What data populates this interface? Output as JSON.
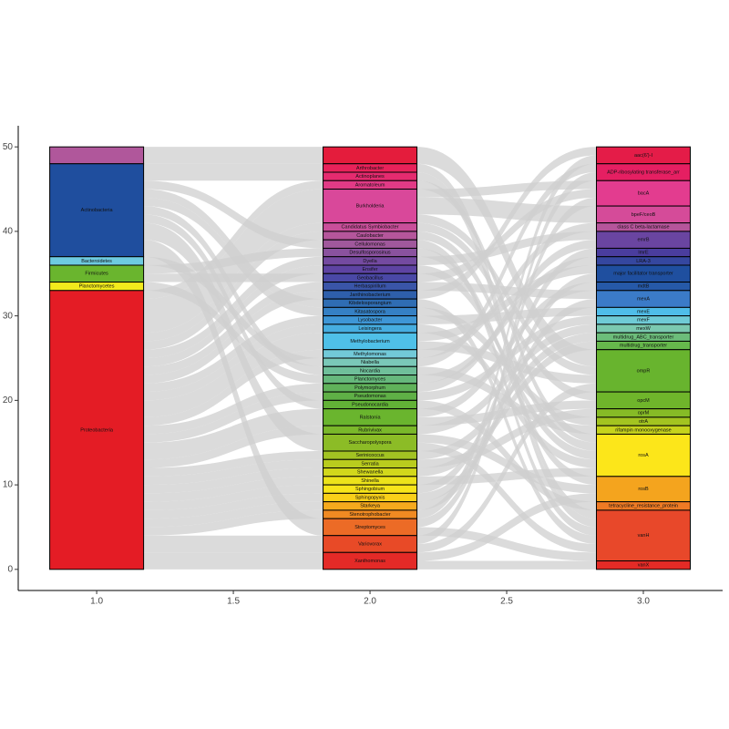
{
  "chart_data": {
    "type": "alluvial",
    "xlim": [
      0.713,
      3.29
    ],
    "ylim": [
      -2.5,
      52.5
    ],
    "xticks": [
      {
        "value": 1,
        "label": "1.0"
      },
      {
        "value": 1.5,
        "label": "1.5"
      },
      {
        "value": 2,
        "label": "2.0"
      },
      {
        "value": 2.5,
        "label": "2.5"
      },
      {
        "value": 3,
        "label": "3.0"
      }
    ],
    "yticks": [
      0,
      10,
      20,
      30,
      40,
      50
    ],
    "link_color": "#cfcfcf",
    "axes": [
      {
        "x": 1,
        "strata": [
          {
            "label": null,
            "value": 2,
            "color": "#b0579b"
          },
          {
            "label": "Actinobacteria",
            "value": 11,
            "color": "#1f4e9e"
          },
          {
            "label": "Bacteroidetes",
            "value": 1,
            "color": "#6ecbe0"
          },
          {
            "label": "Firmicutes",
            "value": 2,
            "color": "#6ab52e"
          },
          {
            "label": "Planctomycetes",
            "value": 1,
            "color": "#f2ea1c"
          },
          {
            "label": "Proteobacteria",
            "value": 33,
            "color": "#e41c25"
          }
        ]
      },
      {
        "x": 2,
        "strata": [
          {
            "label": null,
            "value": 2,
            "color": "#e41c3c"
          },
          {
            "label": "Arthrobacter",
            "value": 1,
            "color": "#e8225a"
          },
          {
            "label": "Actinoplanes",
            "value": 1,
            "color": "#e52b6f"
          },
          {
            "label": "Aromatoleum",
            "value": 1,
            "color": "#e23a86"
          },
          {
            "label": "Burkholderia",
            "value": 4,
            "color": "#d9489a"
          },
          {
            "label": "Candidatus Symbiobacter",
            "value": 1,
            "color": "#c94f9a"
          },
          {
            "label": "Caulobacter",
            "value": 1,
            "color": "#b5569b"
          },
          {
            "label": "Cellulomonas",
            "value": 1,
            "color": "#a0589c"
          },
          {
            "label": "Desulfosporosinus",
            "value": 1,
            "color": "#8a529e"
          },
          {
            "label": "Dyella",
            "value": 1,
            "color": "#744aa0"
          },
          {
            "label": "Ensifer",
            "value": 1,
            "color": "#5e43a2"
          },
          {
            "label": "Geobacillus",
            "value": 1,
            "color": "#4a48a6"
          },
          {
            "label": "Herbaspirillum",
            "value": 1,
            "color": "#3a55a8"
          },
          {
            "label": "Janthinobacterium",
            "value": 1,
            "color": "#2e5fab"
          },
          {
            "label": "Kibdelosporangium",
            "value": 1,
            "color": "#2f6db3"
          },
          {
            "label": "Kitasatospora",
            "value": 1,
            "color": "#3580c4"
          },
          {
            "label": "Lysobacter",
            "value": 1,
            "color": "#3e96d6"
          },
          {
            "label": "Leisingera",
            "value": 1,
            "color": "#46ade0"
          },
          {
            "label": "Methylobacterium",
            "value": 2,
            "color": "#4fc0e8"
          },
          {
            "label": "Methylomonas",
            "value": 1,
            "color": "#72c9d8"
          },
          {
            "label": "Niabella",
            "value": 1,
            "color": "#7ac8b8"
          },
          {
            "label": "Nocardia",
            "value": 1,
            "color": "#6fbf9a"
          },
          {
            "label": "Planctomyces",
            "value": 1,
            "color": "#66b87c"
          },
          {
            "label": "Polymorphum",
            "value": 1,
            "color": "#60b25a"
          },
          {
            "label": "Pseudomonas",
            "value": 1,
            "color": "#5fb046"
          },
          {
            "label": "Pseudonocardia",
            "value": 1,
            "color": "#62b236"
          },
          {
            "label": "Ralstonia",
            "value": 2,
            "color": "#6ab52e"
          },
          {
            "label": "Rubrivivax",
            "value": 1,
            "color": "#7ab82a"
          },
          {
            "label": "Saccharopolyspora",
            "value": 2,
            "color": "#8cbc26"
          },
          {
            "label": "Serinicoccus",
            "value": 1,
            "color": "#a2c322"
          },
          {
            "label": "Serratia",
            "value": 1,
            "color": "#b9cc1e"
          },
          {
            "label": "Shewanella",
            "value": 1,
            "color": "#d2d81b"
          },
          {
            "label": "Shinella",
            "value": 1,
            "color": "#ece31a"
          },
          {
            "label": "Sphingobium",
            "value": 1,
            "color": "#f7e51a"
          },
          {
            "label": "Sphingopyxis",
            "value": 1,
            "color": "#f9d019"
          },
          {
            "label": "Starkeya",
            "value": 1,
            "color": "#f5a91d"
          },
          {
            "label": "Stenotrophobacter",
            "value": 1,
            "color": "#f08a22"
          },
          {
            "label": "Streptomyces",
            "value": 2,
            "color": "#ec6b26"
          },
          {
            "label": "Variovorax",
            "value": 2,
            "color": "#e84a27"
          },
          {
            "label": "Xanthomonas",
            "value": 2,
            "color": "#e42a27"
          }
        ]
      },
      {
        "x": 3,
        "strata": [
          {
            "label": "aac(6')-I",
            "value": 2,
            "color": "#e41c48"
          },
          {
            "label": "ADP-ribosylating transferase_arr",
            "value": 2,
            "color": "#e51f62"
          },
          {
            "label": "bacA",
            "value": 3,
            "color": "#e33c8f"
          },
          {
            "label": "bpeF/ceoB",
            "value": 2,
            "color": "#d54b99"
          },
          {
            "label": "class C beta-lactamase",
            "value": 1,
            "color": "#b6559b"
          },
          {
            "label": "emrB",
            "value": 2,
            "color": "#6a45a1"
          },
          {
            "label": "lmrE",
            "value": 1,
            "color": "#4a3d9e"
          },
          {
            "label": "LRA-3",
            "value": 1,
            "color": "#35479f"
          },
          {
            "label": "major facilitator transporter",
            "value": 2,
            "color": "#1f4f9f"
          },
          {
            "label": "mdtB",
            "value": 1,
            "color": "#2659a8"
          },
          {
            "label": "mexA",
            "value": 2,
            "color": "#3b7bc8"
          },
          {
            "label": "mexE",
            "value": 1,
            "color": "#4fbde9"
          },
          {
            "label": "mexF",
            "value": 1,
            "color": "#6fcbd6"
          },
          {
            "label": "mexW",
            "value": 1,
            "color": "#7bc9b0"
          },
          {
            "label": "multidrug_ABC_transporter",
            "value": 1,
            "color": "#6cbd7a"
          },
          {
            "label": "multidrug_transporter",
            "value": 1,
            "color": "#66b84c"
          },
          {
            "label": "ompR",
            "value": 5,
            "color": "#68b42e"
          },
          {
            "label": "opcM",
            "value": 2,
            "color": "#6fb52b"
          },
          {
            "label": "oprM",
            "value": 1,
            "color": "#86bb26"
          },
          {
            "label": "otrA",
            "value": 1,
            "color": "#a3c420"
          },
          {
            "label": "rifampin monooxygenase",
            "value": 1,
            "color": "#c6d31c"
          },
          {
            "label": "rosA",
            "value": 5,
            "color": "#fce61a"
          },
          {
            "label": "rosB",
            "value": 3,
            "color": "#f4a41e"
          },
          {
            "label": "tetracycline_resistance_protein",
            "value": 1,
            "color": "#ee7a24"
          },
          {
            "label": "vanH",
            "value": 6,
            "color": "#e8482a"
          },
          {
            "label": "vanX",
            "value": 1,
            "color": "#e42b26"
          }
        ]
      }
    ],
    "links": [
      [
        {
          "source": 0,
          "target": 0,
          "value": 2
        },
        {
          "source": 1,
          "target": 1,
          "value": 1
        },
        {
          "source": 1,
          "target": 2,
          "value": 1
        },
        {
          "source": 5,
          "target": 3,
          "value": 1
        },
        {
          "source": 5,
          "target": 4,
          "value": 4
        },
        {
          "source": 5,
          "target": 5,
          "value": 1
        },
        {
          "source": 5,
          "target": 6,
          "value": 1
        },
        {
          "source": 1,
          "target": 7,
          "value": 1
        },
        {
          "source": 3,
          "target": 8,
          "value": 1
        },
        {
          "source": 5,
          "target": 9,
          "value": 1
        },
        {
          "source": 5,
          "target": 10,
          "value": 1
        },
        {
          "source": 3,
          "target": 11,
          "value": 1
        },
        {
          "source": 5,
          "target": 12,
          "value": 1
        },
        {
          "source": 5,
          "target": 13,
          "value": 1
        },
        {
          "source": 1,
          "target": 14,
          "value": 1
        },
        {
          "source": 1,
          "target": 15,
          "value": 1
        },
        {
          "source": 5,
          "target": 16,
          "value": 1
        },
        {
          "source": 5,
          "target": 17,
          "value": 1
        },
        {
          "source": 5,
          "target": 18,
          "value": 2
        },
        {
          "source": 5,
          "target": 19,
          "value": 1
        },
        {
          "source": 2,
          "target": 20,
          "value": 1
        },
        {
          "source": 1,
          "target": 21,
          "value": 1
        },
        {
          "source": 4,
          "target": 22,
          "value": 1
        },
        {
          "source": 5,
          "target": 23,
          "value": 1
        },
        {
          "source": 5,
          "target": 24,
          "value": 1
        },
        {
          "source": 1,
          "target": 25,
          "value": 1
        },
        {
          "source": 5,
          "target": 26,
          "value": 2
        },
        {
          "source": 5,
          "target": 27,
          "value": 1
        },
        {
          "source": 1,
          "target": 28,
          "value": 2
        },
        {
          "source": 5,
          "target": 29,
          "value": 1
        },
        {
          "source": 5,
          "target": 30,
          "value": 1
        },
        {
          "source": 5,
          "target": 31,
          "value": 1
        },
        {
          "source": 5,
          "target": 32,
          "value": 1
        },
        {
          "source": 5,
          "target": 33,
          "value": 1
        },
        {
          "source": 5,
          "target": 34,
          "value": 1
        },
        {
          "source": 5,
          "target": 35,
          "value": 1
        },
        {
          "source": 5,
          "target": 36,
          "value": 1
        },
        {
          "source": 1,
          "target": 37,
          "value": 2
        },
        {
          "source": 5,
          "target": 38,
          "value": 2
        },
        {
          "source": 5,
          "target": 39,
          "value": 2
        }
      ],
      [
        {
          "source": 0,
          "target": 16,
          "value": 2
        },
        {
          "source": 1,
          "target": 24,
          "value": 1
        },
        {
          "source": 2,
          "target": 24,
          "value": 1
        },
        {
          "source": 3,
          "target": 21,
          "value": 1
        },
        {
          "source": 4,
          "target": 2,
          "value": 1
        },
        {
          "source": 4,
          "target": 3,
          "value": 2
        },
        {
          "source": 4,
          "target": 16,
          "value": 1
        },
        {
          "source": 5,
          "target": 17,
          "value": 1
        },
        {
          "source": 6,
          "target": 21,
          "value": 1
        },
        {
          "source": 7,
          "target": 24,
          "value": 1
        },
        {
          "source": 8,
          "target": 22,
          "value": 1
        },
        {
          "source": 9,
          "target": 5,
          "value": 1
        },
        {
          "source": 10,
          "target": 21,
          "value": 1
        },
        {
          "source": 11,
          "target": 2,
          "value": 1
        },
        {
          "source": 12,
          "target": 10,
          "value": 1
        },
        {
          "source": 13,
          "target": 0,
          "value": 1
        },
        {
          "source": 14,
          "target": 24,
          "value": 1
        },
        {
          "source": 15,
          "target": 19,
          "value": 1
        },
        {
          "source": 16,
          "target": 11,
          "value": 1
        },
        {
          "source": 17,
          "target": 21,
          "value": 1
        },
        {
          "source": 18,
          "target": 8,
          "value": 1
        },
        {
          "source": 18,
          "target": 16,
          "value": 1
        },
        {
          "source": 19,
          "target": 4,
          "value": 1
        },
        {
          "source": 20,
          "target": 1,
          "value": 1
        },
        {
          "source": 21,
          "target": 20,
          "value": 1
        },
        {
          "source": 22,
          "target": 7,
          "value": 1
        },
        {
          "source": 23,
          "target": 5,
          "value": 1
        },
        {
          "source": 24,
          "target": 12,
          "value": 1
        },
        {
          "source": 25,
          "target": 23,
          "value": 1
        },
        {
          "source": 26,
          "target": 9,
          "value": 1
        },
        {
          "source": 26,
          "target": 17,
          "value": 1
        },
        {
          "source": 27,
          "target": 13,
          "value": 1
        },
        {
          "source": 28,
          "target": 22,
          "value": 1
        },
        {
          "source": 28,
          "target": 24,
          "value": 1
        },
        {
          "source": 29,
          "target": 14,
          "value": 1
        },
        {
          "source": 30,
          "target": 18,
          "value": 1
        },
        {
          "source": 31,
          "target": 15,
          "value": 1
        },
        {
          "source": 32,
          "target": 21,
          "value": 1
        },
        {
          "source": 33,
          "target": 6,
          "value": 1
        },
        {
          "source": 34,
          "target": 10,
          "value": 1
        },
        {
          "source": 35,
          "target": 8,
          "value": 1
        },
        {
          "source": 36,
          "target": 0,
          "value": 1
        },
        {
          "source": 37,
          "target": 2,
          "value": 1
        },
        {
          "source": 37,
          "target": 24,
          "value": 1
        },
        {
          "source": 38,
          "target": 1,
          "value": 1
        },
        {
          "source": 38,
          "target": 16,
          "value": 1
        },
        {
          "source": 39,
          "target": 22,
          "value": 1
        },
        {
          "source": 39,
          "target": 25,
          "value": 1
        }
      ]
    ]
  }
}
